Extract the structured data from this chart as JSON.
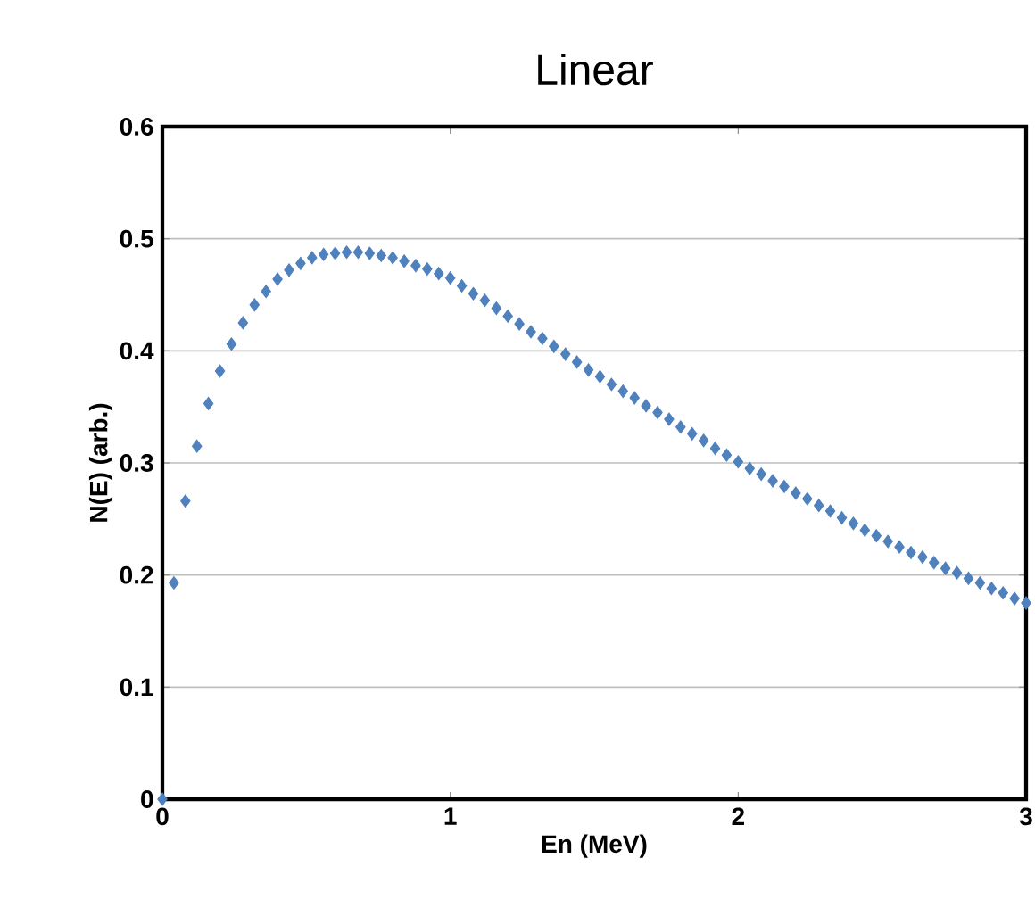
{
  "chart_data": {
    "type": "scatter",
    "title": "Linear",
    "xlabel": "En (MeV)",
    "ylabel": "N(E) (arb.)",
    "xlim": [
      0,
      3
    ],
    "xticks": [
      0,
      1,
      2,
      3
    ],
    "ylim": [
      0,
      0.6
    ],
    "yticks": [
      0,
      0.1,
      0.2,
      0.3,
      0.4,
      0.5,
      0.6
    ],
    "grid": "y",
    "marker": "diamond",
    "series": [
      {
        "color": "#4f81bd",
        "x": [
          0,
          0.04,
          0.08,
          0.12,
          0.16,
          0.2,
          0.24,
          0.28,
          0.32,
          0.36,
          0.4,
          0.44,
          0.48,
          0.52,
          0.56,
          0.6,
          0.64,
          0.68,
          0.72,
          0.76,
          0.8,
          0.84,
          0.88,
          0.92,
          0.96,
          1.0,
          1.04,
          1.08,
          1.12,
          1.16,
          1.2,
          1.24,
          1.28,
          1.32,
          1.36,
          1.4,
          1.44,
          1.48,
          1.52,
          1.56,
          1.6,
          1.64,
          1.68,
          1.72,
          1.76,
          1.8,
          1.84,
          1.88,
          1.92,
          1.96,
          2.0,
          2.04,
          2.08,
          2.12,
          2.16,
          2.2,
          2.24,
          2.28,
          2.32,
          2.36,
          2.4,
          2.44,
          2.48,
          2.52,
          2.56,
          2.6,
          2.64,
          2.68,
          2.72,
          2.76,
          2.8,
          2.84,
          2.88,
          2.92,
          2.96,
          3.0
        ],
        "values": [
          0,
          0.193,
          0.266,
          0.315,
          0.353,
          0.382,
          0.406,
          0.425,
          0.441,
          0.453,
          0.464,
          0.472,
          0.478,
          0.483,
          0.486,
          0.487,
          0.488,
          0.488,
          0.487,
          0.485,
          0.483,
          0.48,
          0.476,
          0.473,
          0.469,
          0.465,
          0.458,
          0.451,
          0.445,
          0.438,
          0.431,
          0.424,
          0.417,
          0.411,
          0.404,
          0.397,
          0.39,
          0.383,
          0.377,
          0.37,
          0.364,
          0.358,
          0.351,
          0.345,
          0.339,
          0.332,
          0.326,
          0.32,
          0.313,
          0.307,
          0.301,
          0.295,
          0.29,
          0.284,
          0.279,
          0.273,
          0.268,
          0.262,
          0.257,
          0.251,
          0.246,
          0.24,
          0.235,
          0.23,
          0.225,
          0.22,
          0.216,
          0.211,
          0.206,
          0.202,
          0.197,
          0.193,
          0.188,
          0.184,
          0.179,
          0.175
        ]
      }
    ]
  }
}
